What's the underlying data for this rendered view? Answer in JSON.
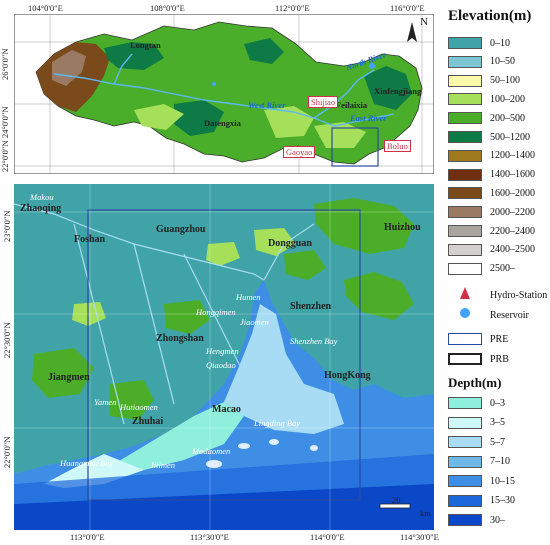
{
  "top_map": {
    "lon_ticks": [
      "104°0'0\"E",
      "108°0'0\"E",
      "112°0'0\"E",
      "116°0'0\"E"
    ],
    "lat_ticks": [
      "26°0'0\"N",
      "24°0'0\"N",
      "22°0'0\"N"
    ],
    "places_black": [
      "Longtan",
      "Datengxia",
      "Feilaixia",
      "Xinfengjiang"
    ],
    "rivers": [
      "North River",
      "West River",
      "East River"
    ],
    "stations": [
      "Shijiao",
      "Gaoyao",
      "Boluo"
    ],
    "north_label": "N"
  },
  "bottom_map": {
    "lon_ticks": [
      "113°0'0\"E",
      "113°30'0\"E",
      "114°0'0\"E",
      "114°30'0\"E"
    ],
    "lat_ticks": [
      "23°0'0\"N",
      "22°30'0\"N",
      "22°0'0\"N"
    ],
    "cities": [
      "Zhaoqing",
      "Foshan",
      "Guangzhou",
      "Dongguan",
      "Huizhou",
      "Shenzhen",
      "Zhongshan",
      "Jiangmen",
      "Zhuhai",
      "Macao",
      "HongKong"
    ],
    "outlets": [
      "Makou",
      "Humen",
      "Hongqimen",
      "Jiaomen",
      "Hengmen",
      "Qiaodao",
      "Yamen",
      "Hutiaomen",
      "Modaomen",
      "Jitimen",
      "Huangmao Bay",
      "Lingding Bay",
      "Shenzhen Bay"
    ],
    "scale_label": "20",
    "scale_unit": "km"
  },
  "legend": {
    "elevation_title": "Elevation(m)",
    "elevation": [
      {
        "label": "0–10",
        "color": "#3fa3a8"
      },
      {
        "label": "10–50",
        "color": "#7ec6d4"
      },
      {
        "label": "50–100",
        "color": "#fafaaa"
      },
      {
        "label": "100–200",
        "color": "#a6e05a"
      },
      {
        "label": "200–500",
        "color": "#4cae28"
      },
      {
        "label": "500–1200",
        "color": "#0e7a45"
      },
      {
        "label": "1200–1400",
        "color": "#a07a1e"
      },
      {
        "label": "1400–1600",
        "color": "#6e3010"
      },
      {
        "label": "1600–2000",
        "color": "#7a4a1a"
      },
      {
        "label": "2000–2200",
        "color": "#9a7a62"
      },
      {
        "label": "2200–2400",
        "color": "#a8a4a0"
      },
      {
        "label": "2400–2500",
        "color": "#d2d0ce"
      },
      {
        "label": "2500–",
        "color": "#ffffff"
      }
    ],
    "symbols": [
      {
        "label": "Hydro-Station",
        "icon": "hydro-station-icon"
      },
      {
        "label": "Reservoir",
        "icon": "reservoir-icon"
      },
      {
        "label": "PRE",
        "icon": "pre-box-icon",
        "color": "#2c4aa0"
      },
      {
        "label": "PRB",
        "icon": "prb-box-icon",
        "color": "#222222"
      }
    ],
    "depth_title": "Depth(m)",
    "depth": [
      {
        "label": "0–3",
        "color": "#8ef0dc"
      },
      {
        "label": "3–5",
        "color": "#cff8f8"
      },
      {
        "label": "5–7",
        "color": "#a8dcf4"
      },
      {
        "label": "7–10",
        "color": "#70b8e8"
      },
      {
        "label": "10–15",
        "color": "#3e8ee6"
      },
      {
        "label": "15–30",
        "color": "#1c66dc"
      },
      {
        "label": "30–",
        "color": "#0a48c8"
      }
    ]
  }
}
